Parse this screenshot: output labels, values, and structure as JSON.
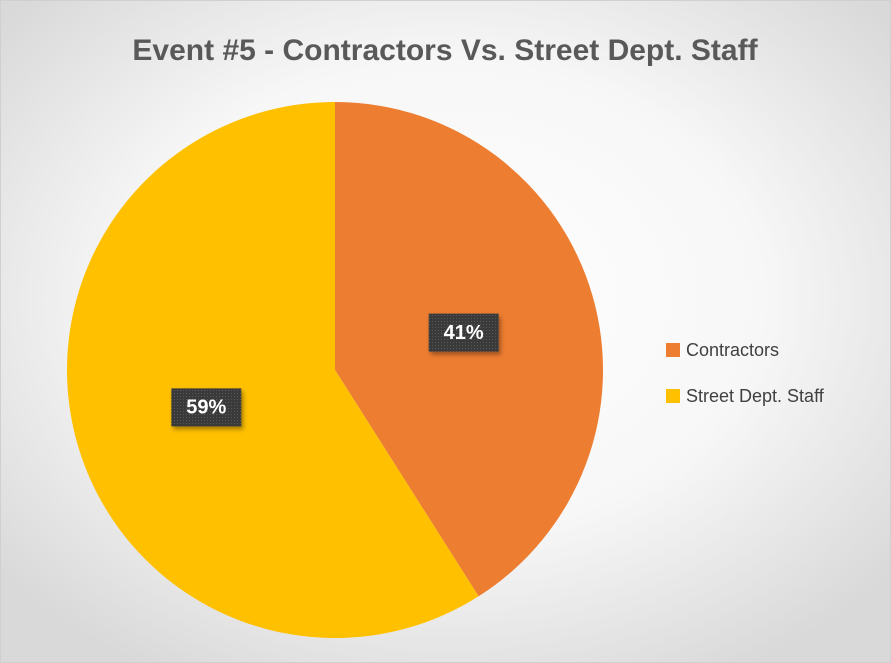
{
  "chart_data": {
    "type": "pie",
    "title": "Event #5 - Contractors Vs. Street Dept. Staff",
    "categories": [
      "Contractors",
      "Street Dept. Staff"
    ],
    "values": [
      41,
      59
    ],
    "value_labels": [
      "41%",
      "59%"
    ],
    "colors": [
      "#ED7D31",
      "#FFC000"
    ],
    "legend": "right"
  }
}
